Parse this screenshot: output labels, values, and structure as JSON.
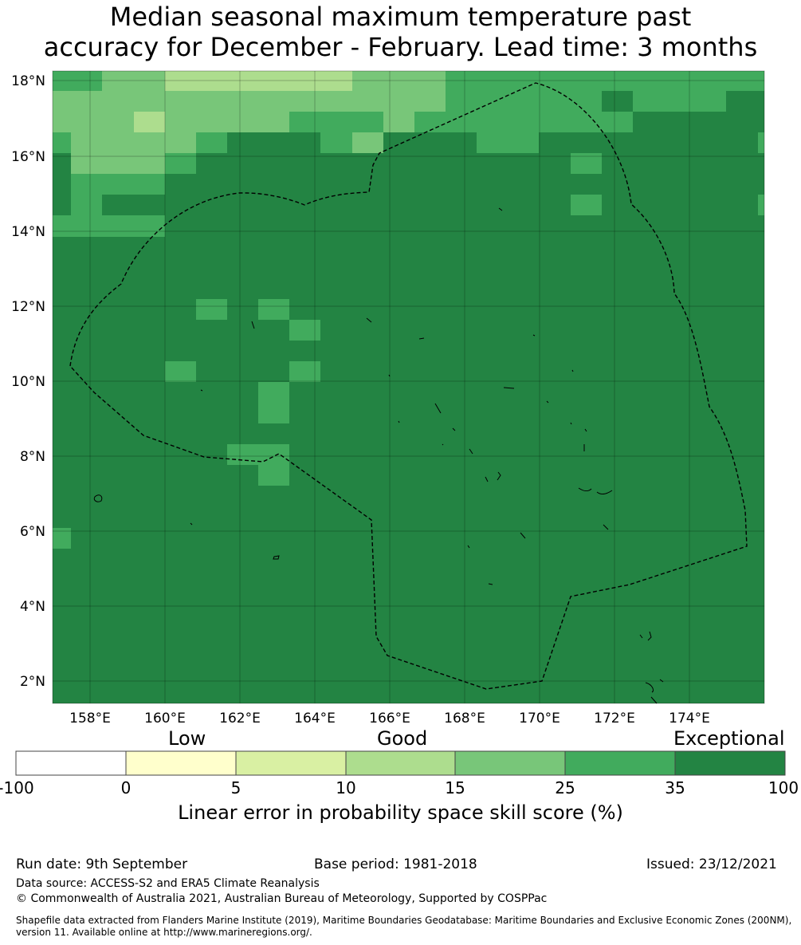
{
  "title_line1": "Median seasonal maximum temperature past",
  "title_line2": "accuracy for December - February. Lead time: 3 months",
  "map": {
    "lon_labels": [
      "158°E",
      "160°E",
      "162°E",
      "164°E",
      "166°E",
      "168°E",
      "170°E",
      "172°E",
      "174°E"
    ],
    "lat_labels": [
      "18°N",
      "16°N",
      "14°N",
      "12°N",
      "10°N",
      "8°N",
      "6°N",
      "4°N",
      "2°N"
    ],
    "lon_range": [
      157.0,
      176.0
    ],
    "lat_range": [
      1.4,
      18.3
    ],
    "grid_lines": true,
    "colors": {
      "c0": "#ffffcc",
      "c5": "#d9f0a3",
      "c10": "#addd8e",
      "c15": "#78c679",
      "c25": "#41ab5d",
      "c35": "#238443"
    }
  },
  "colorbar": {
    "categories": [
      "Low",
      "Good",
      "Exceptional"
    ],
    "ticks": [
      "-100",
      "0",
      "5",
      "10",
      "15",
      "25",
      "35",
      "100"
    ],
    "colors": [
      "#ffffff",
      "#ffffcc",
      "#d9f0a3",
      "#addd8e",
      "#78c679",
      "#41ab5d",
      "#238443"
    ],
    "label": "Linear error in probability space skill score (%)"
  },
  "footer": {
    "run_date": "Run date: 9th September",
    "base_period": "Base period: 1981-2018",
    "issued": "Issued: 23/12/2021",
    "data_source": "Data source: ACCESS-S2 and ERA5 Climate Reanalysis",
    "copyright": "© Commonwealth of Australia 2021, Australian Bureau of Meteorology, Supported by COSPPac",
    "shapefile": "Shapefile data extracted from Flanders Marine Institute (2019), Maritime Boundaries Geodatabase: Maritime Boundaries and Exclusive Economic Zones (200NM), version 11. Available online at http://www.marineregions.org/."
  }
}
